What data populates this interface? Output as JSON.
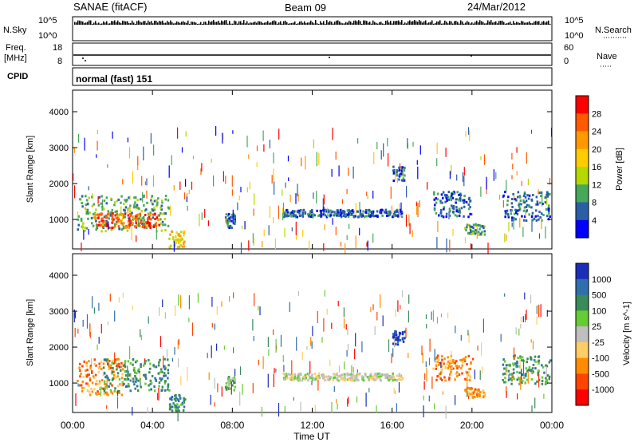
{
  "header": {
    "station": "SANAE (fitACF)",
    "beam": "Beam 09",
    "date": "24/Mar/2012"
  },
  "strips": {
    "nsky_label": "N.Sky",
    "nsearch_label": "N.Search",
    "nsky_ticks": [
      "10^5",
      "10^0"
    ],
    "nsearch_ticks": [
      "10^5",
      "10^0"
    ],
    "freq_label_line1": "Freq.",
    "freq_label_line2": "[MHz]",
    "freq_ticks": [
      "18",
      "8"
    ],
    "nave_label": "Nave",
    "nave_ticks": [
      "60",
      "0"
    ],
    "cpid_label": "CPID",
    "cpid_value": "normal (fast) 151"
  },
  "x_axis": {
    "label": "Time UT",
    "tick_labels": [
      "00:00",
      "04:00",
      "08:00",
      "12:00",
      "16:00",
      "20:00",
      "00:00"
    ],
    "tick_hours": [
      0,
      4,
      8,
      12,
      16,
      20,
      24
    ],
    "range_hours": [
      0,
      24
    ]
  },
  "power_panel": {
    "ylabel": "Slant Range [km]",
    "yticks": [
      "4000",
      "3000",
      "2000",
      "1000"
    ],
    "ytick_values": [
      4000,
      3000,
      2000,
      1000
    ],
    "ylim": [
      180,
      4600
    ],
    "colorbar_label": "Power [dB]",
    "colorbar_ticks": [
      "28",
      "24",
      "20",
      "16",
      "12",
      "8",
      "4"
    ],
    "colorbar_colors": [
      "#ff0000",
      "#ff5a00",
      "#ff9900",
      "#ffcc00",
      "#b4d800",
      "#45a85a",
      "#2a5fa8",
      "#0000ff"
    ]
  },
  "velocity_panel": {
    "ylabel": "Slant Range [km]",
    "yticks": [
      "4000",
      "3000",
      "2000",
      "1000"
    ],
    "ytick_values": [
      4000,
      3000,
      2000,
      1000
    ],
    "ylim": [
      180,
      4600
    ],
    "colorbar_label": "Velocity [m s^-1]",
    "colorbar_ticks": [
      "1000",
      "500",
      "100",
      "25",
      "-25",
      "-100",
      "-500",
      "-1000"
    ],
    "colorbar_colors": [
      "#1a2fb8",
      "#2f6fae",
      "#3a8a5a",
      "#66cc33",
      "#bfbfbf",
      "#ffcc66",
      "#ff8c00",
      "#ff4400",
      "#ff0000"
    ]
  },
  "chart_data": {
    "type": "heatmap",
    "note_hidden": false,
    "power_blobs": [
      {
        "t0": 0.2,
        "t1": 4.8,
        "r0": 700,
        "r1": 1700,
        "level": 5
      },
      {
        "t0": 1.0,
        "t1": 4.3,
        "r0": 800,
        "r1": 1200,
        "level": 1
      },
      {
        "t0": 4.8,
        "t1": 5.6,
        "r0": 250,
        "r1": 700,
        "level": 3
      },
      {
        "t0": 7.6,
        "t1": 8.1,
        "r0": 800,
        "r1": 1200,
        "level": 6
      },
      {
        "t0": 16.0,
        "t1": 16.6,
        "r0": 2100,
        "r1": 2500,
        "level": 6
      },
      {
        "t0": 18.0,
        "t1": 20.0,
        "r0": 1100,
        "r1": 1800,
        "level": 6
      },
      {
        "t0": 19.6,
        "t1": 20.6,
        "r0": 600,
        "r1": 900,
        "level": 5
      },
      {
        "t0": 21.5,
        "t1": 23.9,
        "r0": 1000,
        "r1": 1800,
        "level": 6
      },
      {
        "t0": 10.5,
        "t1": 16.5,
        "r0": 1100,
        "r1": 1300,
        "level": 6
      }
    ],
    "velocity_blobs": [
      {
        "t0": 0.2,
        "t1": 2.5,
        "r0": 700,
        "r1": 1700,
        "level": 6
      },
      {
        "t0": 1.5,
        "t1": 4.8,
        "r0": 800,
        "r1": 1700,
        "level": 2
      },
      {
        "t0": 4.8,
        "t1": 5.6,
        "r0": 250,
        "r1": 700,
        "level": 2
      },
      {
        "t0": 7.6,
        "t1": 8.1,
        "r0": 800,
        "r1": 1200,
        "level": 3
      },
      {
        "t0": 16.0,
        "t1": 16.6,
        "r0": 2100,
        "r1": 2500,
        "level": 0
      },
      {
        "t0": 10.5,
        "t1": 16.5,
        "r0": 1100,
        "r1": 1300,
        "level": 4
      },
      {
        "t0": 18.0,
        "t1": 20.0,
        "r0": 1100,
        "r1": 1800,
        "level": 6
      },
      {
        "t0": 19.6,
        "t1": 20.6,
        "r0": 600,
        "r1": 900,
        "level": 6
      },
      {
        "t0": 21.5,
        "t1": 23.9,
        "r0": 1000,
        "r1": 1800,
        "level": 2
      }
    ]
  }
}
